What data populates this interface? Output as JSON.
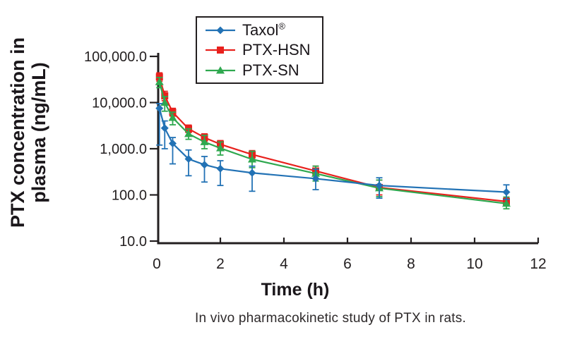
{
  "chart_data": {
    "type": "line",
    "x_hours": [
      0.083,
      0.25,
      0.5,
      1,
      1.5,
      2,
      3,
      5,
      7,
      11
    ],
    "series": [
      {
        "name": "Taxol",
        "name_suffix": "®",
        "marker": "diamond",
        "color": "#2272b5",
        "values": [
          7500,
          2800,
          1300,
          600,
          450,
          370,
          300,
          225,
          160,
          115
        ],
        "err_lo": [
          1200,
          1000,
          470,
          260,
          190,
          160,
          120,
          130,
          85,
          80
        ],
        "err_hi": [
          9500,
          4000,
          1750,
          940,
          680,
          550,
          420,
          360,
          235,
          165
        ]
      },
      {
        "name": "PTX-HSN",
        "name_suffix": "",
        "marker": "square",
        "color": "#e8211d",
        "values": [
          36000,
          14000,
          6200,
          2700,
          1750,
          1250,
          750,
          330,
          145,
          72
        ],
        "err_lo": [
          29000,
          11000,
          5100,
          2250,
          1450,
          1050,
          620,
          270,
          100,
          58
        ],
        "err_hi": [
          44000,
          17500,
          7500,
          3250,
          2100,
          1500,
          910,
          420,
          210,
          88
        ]
      },
      {
        "name": "PTX-SN",
        "name_suffix": "",
        "marker": "triangle",
        "color": "#2fa84f",
        "values": [
          28000,
          10000,
          4700,
          2100,
          1400,
          1030,
          590,
          290,
          140,
          65
        ],
        "err_lo": [
          21000,
          6500,
          3300,
          1600,
          1000,
          730,
          390,
          200,
          92,
          50
        ],
        "err_hi": [
          35000,
          13500,
          6200,
          2700,
          1950,
          1400,
          880,
          420,
          210,
          90
        ]
      }
    ],
    "xlabel": "Time (h)",
    "ylabel_lines": [
      "PTX concentration in",
      "plasma (ng/mL)"
    ],
    "x_ticks": [
      0,
      2,
      4,
      6,
      8,
      10,
      12
    ],
    "y_ticks": [
      {
        "value": 100000,
        "label": "100,000.0"
      },
      {
        "value": 10000,
        "label": "10,000.0"
      },
      {
        "value": 1000,
        "label": "1,000.0"
      },
      {
        "value": 100,
        "label": "100.0"
      },
      {
        "value": 10,
        "label": "10.0"
      }
    ],
    "y_scale": "log",
    "xlim": [
      0,
      12
    ],
    "ylim": [
      10,
      100000
    ],
    "grid": false,
    "legend_position": "top-center-inside-border-box",
    "axis_color": "#231f20",
    "caption": "In vivo pharmacokinetic study of PTX in rats."
  }
}
